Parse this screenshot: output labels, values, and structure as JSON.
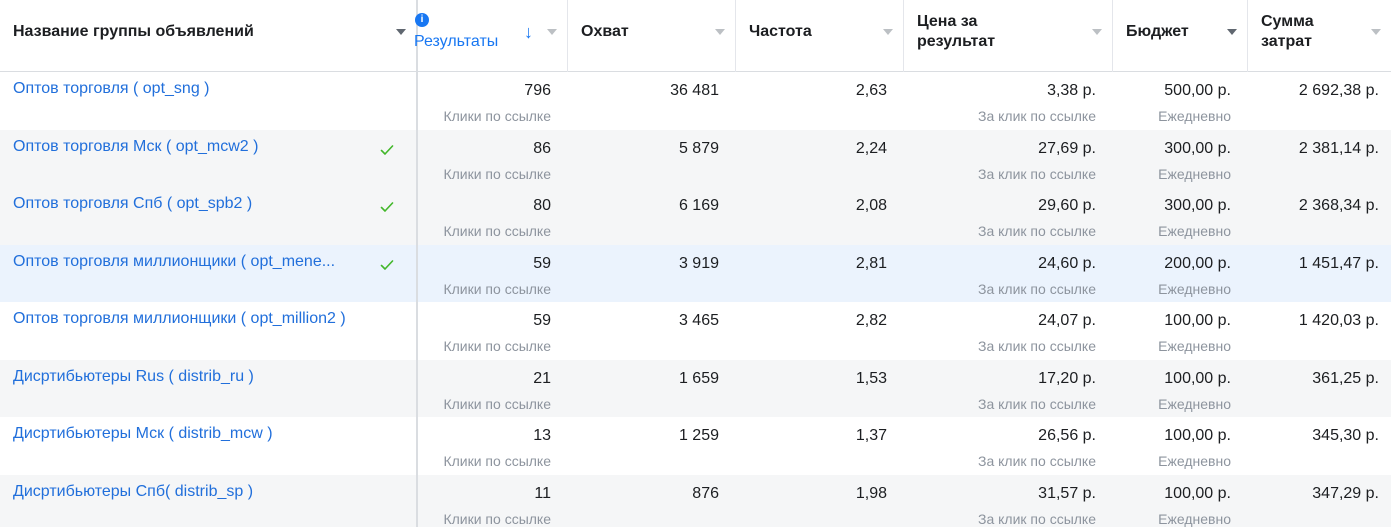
{
  "columns": [
    {
      "label": "Название группы объявлений"
    },
    {
      "label": "Результаты"
    },
    {
      "label": "Охват"
    },
    {
      "label": "Частота"
    },
    {
      "label": "Цена за результат"
    },
    {
      "label": "Бюджет"
    },
    {
      "label": "Сумма затрат"
    }
  ],
  "colors": {
    "link": "#216fdb",
    "check": "#42b72a",
    "sort_active": "#1877f2"
  },
  "rows": [
    {
      "name": "Оптов торговля ( opt_sng )",
      "checked": false,
      "results": "796",
      "results_type": "Клики по ссылке",
      "reach": "36 481",
      "frequency": "2,63",
      "cpr": "3,38 р.",
      "cpr_type": "За клик по ссылке",
      "budget": "500,00 р.",
      "budget_type": "Ежедневно",
      "spend": "2 692,38 р."
    },
    {
      "name": "Оптов торговля Мск ( opt_mcw2 )",
      "checked": true,
      "results": "86",
      "results_type": "Клики по ссылке",
      "reach": "5 879",
      "frequency": "2,24",
      "cpr": "27,69 р.",
      "cpr_type": "За клик по ссылке",
      "budget": "300,00 р.",
      "budget_type": "Ежедневно",
      "spend": "2 381,14 р."
    },
    {
      "name": "Оптов торговля Спб ( opt_spb2 )",
      "checked": true,
      "results": "80",
      "results_type": "Клики по ссылке",
      "reach": "6 169",
      "frequency": "2,08",
      "cpr": "29,60 р.",
      "cpr_type": "За клик по ссылке",
      "budget": "300,00 р.",
      "budget_type": "Ежедневно",
      "spend": "2 368,34 р."
    },
    {
      "name": "Оптов торговля миллионщики ( opt_mene...",
      "checked": true,
      "results": "59",
      "results_type": "Клики по ссылке",
      "reach": "3 919",
      "frequency": "2,81",
      "cpr": "24,60 р.",
      "cpr_type": "За клик по ссылке",
      "budget": "200,00 р.",
      "budget_type": "Ежедневно",
      "spend": "1 451,47 р."
    },
    {
      "name": "Оптов торговля миллионщики ( opt_million2 )",
      "checked": false,
      "results": "59",
      "results_type": "Клики по ссылке",
      "reach": "3 465",
      "frequency": "2,82",
      "cpr": "24,07 р.",
      "cpr_type": "За клик по ссылке",
      "budget": "100,00 р.",
      "budget_type": "Ежедневно",
      "spend": "1 420,03 р."
    },
    {
      "name": "Дисртибьютеры Rus ( distrib_ru )",
      "checked": false,
      "results": "21",
      "results_type": "Клики по ссылке",
      "reach": "1 659",
      "frequency": "1,53",
      "cpr": "17,20 р.",
      "cpr_type": "За клик по ссылке",
      "budget": "100,00 р.",
      "budget_type": "Ежедневно",
      "spend": "361,25 р."
    },
    {
      "name": "Дисртибьютеры Мск ( distrib_mcw )",
      "checked": false,
      "results": "13",
      "results_type": "Клики по ссылке",
      "reach": "1 259",
      "frequency": "1,37",
      "cpr": "26,56 р.",
      "cpr_type": "За клик по ссылке",
      "budget": "100,00 р.",
      "budget_type": "Ежедневно",
      "spend": "345,30 р."
    },
    {
      "name": "Дисртибьютеры Спб( distrib_sp )",
      "checked": false,
      "results": "11",
      "results_type": "Клики по ссылке",
      "reach": "876",
      "frequency": "1,98",
      "cpr": "31,57 р.",
      "cpr_type": "За клик по ссылке",
      "budget": "100,00 р.",
      "budget_type": "Ежедневно",
      "spend": "347,29 р."
    }
  ]
}
